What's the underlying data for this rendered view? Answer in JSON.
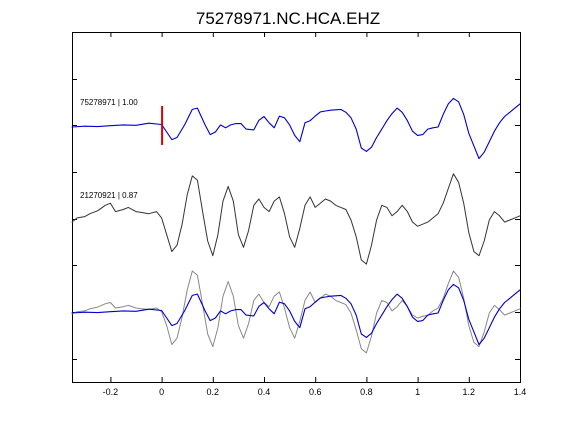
{
  "chart_data": {
    "type": "line",
    "title": "75278971.NC.HCA.EHZ",
    "xlim": [
      -0.35,
      1.4
    ],
    "x_ticks": [
      -0.2,
      0,
      0.2,
      0.4,
      0.6,
      0.8,
      1,
      1.2,
      1.4
    ],
    "x_tick_labels": [
      "-0.2",
      "0",
      "0.2",
      "0.4",
      "0.6",
      "0.8",
      "1",
      "1.2",
      "1.4"
    ],
    "y_tick_count": 7,
    "grid": false,
    "traces": [
      {
        "label": "75278971 | 1.00",
        "color": "#0000cc"
      },
      {
        "label": "21270921 | 0.87",
        "color": "#333333"
      }
    ],
    "pick_marker": {
      "x": 0,
      "color": "#dd0000"
    },
    "overlay_colors": [
      "#888888",
      "#0000cc"
    ],
    "series": [
      {
        "name": "75278971 | 1.00",
        "x": [
          -0.35,
          -0.3,
          -0.25,
          -0.2,
          -0.15,
          -0.1,
          -0.05,
          0,
          0.02,
          0.04,
          0.06,
          0.09,
          0.12,
          0.14,
          0.17,
          0.19,
          0.21,
          0.23,
          0.25,
          0.27,
          0.29,
          0.31,
          0.33,
          0.36,
          0.38,
          0.4,
          0.42,
          0.44,
          0.46,
          0.48,
          0.5,
          0.52,
          0.54,
          0.56,
          0.58,
          0.6,
          0.62,
          0.64,
          0.66,
          0.68,
          0.7,
          0.72,
          0.74,
          0.76,
          0.78,
          0.8,
          0.82,
          0.84,
          0.86,
          0.88,
          0.9,
          0.92,
          0.94,
          0.96,
          0.98,
          1,
          1.02,
          1.04,
          1.06,
          1.08,
          1.1,
          1.12,
          1.14,
          1.16,
          1.18,
          1.2,
          1.22,
          1.24,
          1.26,
          1.28,
          1.3,
          1.32,
          1.34,
          1.36,
          1.38,
          1.4
        ],
        "y": [
          0,
          0.02,
          0.01,
          0.03,
          0.05,
          0.04,
          0.09,
          0.06,
          -0.12,
          -0.3,
          -0.25,
          0.05,
          0.42,
          0.45,
          0.05,
          -0.18,
          -0.12,
          0.05,
          -0.02,
          0.05,
          0.08,
          0.08,
          -0.05,
          -0.07,
          0.16,
          0.25,
          0.1,
          -0.02,
          0.26,
          0.22,
          0.05,
          -0.2,
          -0.35,
          0.1,
          0.15,
          0.26,
          0.36,
          0.38,
          0.4,
          0.41,
          0.42,
          0.35,
          0.22,
          -0.05,
          -0.5,
          -0.58,
          -0.48,
          -0.25,
          -0.05,
          0.15,
          0.32,
          0.45,
          0.35,
          0.15,
          -0.1,
          -0.2,
          -0.18,
          -0.05,
          -0.02,
          0.0,
          0.3,
          0.55,
          0.68,
          0.6,
          0.3,
          -0.15,
          -0.45,
          -0.75,
          -0.6,
          -0.35,
          -0.1,
          0.1,
          0.25,
          0.35,
          0.45,
          0.55
        ]
      },
      {
        "name": "21270921 | 0.87",
        "x": [
          -0.35,
          -0.33,
          -0.3,
          -0.28,
          -0.25,
          -0.22,
          -0.2,
          -0.18,
          -0.15,
          -0.13,
          -0.1,
          -0.08,
          -0.05,
          -0.02,
          0,
          0.02,
          0.04,
          0.06,
          0.08,
          0.1,
          0.12,
          0.14,
          0.16,
          0.18,
          0.2,
          0.22,
          0.24,
          0.26,
          0.28,
          0.3,
          0.32,
          0.34,
          0.36,
          0.38,
          0.4,
          0.42,
          0.44,
          0.46,
          0.48,
          0.5,
          0.52,
          0.54,
          0.56,
          0.58,
          0.6,
          0.62,
          0.64,
          0.66,
          0.68,
          0.7,
          0.72,
          0.74,
          0.76,
          0.78,
          0.8,
          0.82,
          0.84,
          0.86,
          0.88,
          0.9,
          0.92,
          0.94,
          0.96,
          0.98,
          1,
          1.02,
          1.04,
          1.06,
          1.08,
          1.1,
          1.12,
          1.14,
          1.16,
          1.18,
          1.2,
          1.22,
          1.24,
          1.26,
          1.28,
          1.3,
          1.32,
          1.34,
          1.36,
          1.38,
          1.4
        ],
        "y": [
          -0.05,
          0.05,
          0.08,
          0.15,
          0.22,
          0.35,
          0.4,
          0.2,
          0.25,
          0.3,
          0.2,
          0.18,
          0.15,
          0.2,
          0.05,
          -0.35,
          -0.75,
          -0.6,
          -0.1,
          0.6,
          1.05,
          0.95,
          0.2,
          -0.5,
          -0.85,
          -0.35,
          0.45,
          0.8,
          0.45,
          -0.35,
          -0.65,
          -0.25,
          0.35,
          0.5,
          0.3,
          0.2,
          0.45,
          0.55,
          0.15,
          -0.4,
          -0.65,
          -0.2,
          0.35,
          0.55,
          0.3,
          0.4,
          0.5,
          0.45,
          0.35,
          0.3,
          0.25,
          0.0,
          -0.4,
          -0.95,
          -1.05,
          -0.6,
          0.0,
          0.35,
          0.3,
          0.1,
          0.2,
          0.35,
          0.2,
          -0.05,
          -0.15,
          -0.1,
          -0.05,
          0.05,
          0.15,
          0.4,
          0.75,
          1.1,
          0.9,
          0.4,
          -0.3,
          -0.75,
          -0.85,
          -0.5,
          0.0,
          0.2,
          0.1,
          -0.05,
          0.0,
          0.05,
          0.1
        ]
      },
      {
        "name": "overlay-gray",
        "x": [
          -0.35,
          -0.33,
          -0.3,
          -0.28,
          -0.25,
          -0.22,
          -0.2,
          -0.18,
          -0.15,
          -0.13,
          -0.1,
          -0.08,
          -0.05,
          -0.02,
          0,
          0.02,
          0.04,
          0.06,
          0.08,
          0.1,
          0.12,
          0.14,
          0.16,
          0.18,
          0.2,
          0.22,
          0.24,
          0.26,
          0.28,
          0.3,
          0.32,
          0.34,
          0.36,
          0.38,
          0.4,
          0.42,
          0.44,
          0.46,
          0.48,
          0.5,
          0.52,
          0.54,
          0.56,
          0.58,
          0.6,
          0.62,
          0.64,
          0.66,
          0.68,
          0.7,
          0.72,
          0.74,
          0.76,
          0.78,
          0.8,
          0.82,
          0.84,
          0.86,
          0.88,
          0.9,
          0.92,
          0.94,
          0.96,
          0.98,
          1,
          1.02,
          1.04,
          1.06,
          1.08,
          1.1,
          1.12,
          1.14,
          1.16,
          1.18,
          1.2,
          1.22,
          1.24,
          1.26,
          1.28,
          1.3,
          1.32,
          1.34,
          1.36,
          1.38,
          1.4
        ],
        "y": [
          -0.02,
          0.03,
          0.05,
          0.1,
          0.14,
          0.22,
          0.25,
          0.12,
          0.15,
          0.18,
          0.12,
          0.1,
          0.09,
          0.12,
          0.03,
          -0.3,
          -0.75,
          -0.6,
          -0.1,
          0.55,
          1.0,
          0.9,
          0.2,
          -0.5,
          -0.8,
          -0.35,
          0.4,
          0.75,
          0.4,
          -0.3,
          -0.6,
          -0.25,
          0.3,
          0.45,
          0.25,
          0.15,
          0.4,
          0.5,
          0.12,
          -0.35,
          -0.6,
          -0.2,
          0.3,
          0.5,
          0.25,
          0.35,
          0.45,
          0.4,
          0.3,
          0.25,
          0.2,
          0.0,
          -0.4,
          -0.85,
          -0.95,
          -0.55,
          0.0,
          0.3,
          0.25,
          0.05,
          0.15,
          0.3,
          0.15,
          -0.05,
          -0.12,
          -0.08,
          -0.05,
          0.05,
          0.12,
          0.35,
          0.7,
          1.0,
          0.85,
          0.35,
          -0.3,
          -0.7,
          -0.8,
          -0.45,
          0.0,
          0.18,
          0.08,
          -0.05,
          0.0,
          0.05,
          0.1
        ]
      },
      {
        "name": "overlay-blue",
        "x": [
          -0.35,
          -0.3,
          -0.25,
          -0.2,
          -0.15,
          -0.1,
          -0.05,
          0,
          0.02,
          0.04,
          0.06,
          0.09,
          0.12,
          0.14,
          0.17,
          0.19,
          0.21,
          0.23,
          0.25,
          0.27,
          0.29,
          0.31,
          0.33,
          0.36,
          0.38,
          0.4,
          0.42,
          0.44,
          0.46,
          0.48,
          0.5,
          0.52,
          0.54,
          0.56,
          0.58,
          0.6,
          0.62,
          0.64,
          0.66,
          0.68,
          0.7,
          0.72,
          0.74,
          0.76,
          0.78,
          0.8,
          0.82,
          0.84,
          0.86,
          0.88,
          0.9,
          0.92,
          0.94,
          0.96,
          0.98,
          1,
          1.02,
          1.04,
          1.06,
          1.08,
          1.1,
          1.12,
          1.14,
          1.16,
          1.18,
          1.2,
          1.22,
          1.24,
          1.26,
          1.28,
          1.3,
          1.32,
          1.34,
          1.36,
          1.38,
          1.4
        ],
        "y": [
          0,
          0.02,
          0.01,
          0.03,
          0.05,
          0.04,
          0.09,
          0.06,
          -0.12,
          -0.3,
          -0.25,
          0.05,
          0.42,
          0.45,
          0.05,
          -0.18,
          -0.12,
          0.05,
          -0.02,
          0.05,
          0.08,
          0.08,
          -0.05,
          -0.07,
          0.16,
          0.25,
          0.1,
          -0.02,
          0.26,
          0.22,
          0.05,
          -0.2,
          -0.35,
          0.1,
          0.15,
          0.26,
          0.36,
          0.38,
          0.4,
          0.41,
          0.42,
          0.35,
          0.22,
          -0.05,
          -0.5,
          -0.58,
          -0.48,
          -0.25,
          -0.05,
          0.15,
          0.32,
          0.45,
          0.35,
          0.15,
          -0.1,
          -0.2,
          -0.18,
          -0.05,
          -0.02,
          0.0,
          0.3,
          0.55,
          0.68,
          0.6,
          0.3,
          -0.15,
          -0.45,
          -0.75,
          -0.6,
          -0.35,
          -0.1,
          0.1,
          0.25,
          0.35,
          0.45,
          0.55
        ]
      }
    ]
  }
}
